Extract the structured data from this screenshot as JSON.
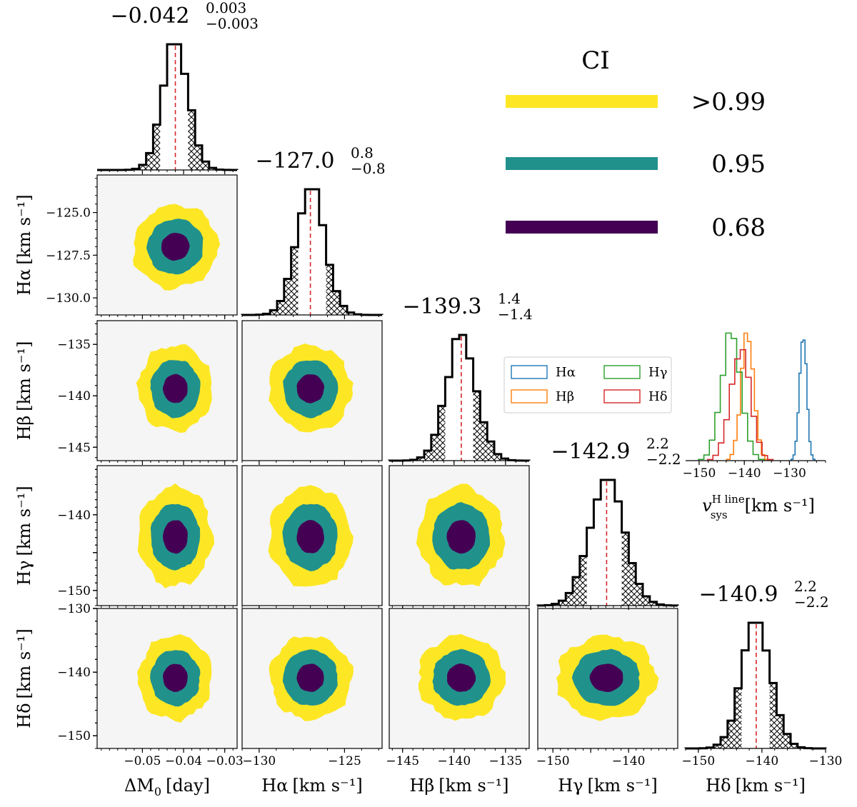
{
  "chart_data": {
    "type": "corner",
    "parameters": [
      {
        "key": "dM0",
        "label": "ΔM",
        "label_sub": "0",
        "label_unit": "[day]",
        "range": [
          -0.061,
          -0.027
        ],
        "ticks": [
          -0.05,
          -0.04,
          -0.03
        ],
        "tick_labels": [
          "−0.05",
          "−0.04",
          "−0.03"
        ],
        "median": -0.042,
        "err_plus": 0.003,
        "err_minus": 0.003,
        "title_value": "−0.042",
        "title_plus": "0.003",
        "title_minus": "−0.003"
      },
      {
        "key": "Ha",
        "label": "Hα",
        "label_unit": "[km s⁻¹]",
        "range": [
          -131,
          -122.8
        ],
        "ticks": [
          -130,
          -125
        ],
        "tick_labels": [
          "−130",
          "−125"
        ],
        "median": -127.0,
        "err_plus": 0.8,
        "err_minus": 0.8,
        "title_value": "−127.0",
        "title_plus": "0.8",
        "title_minus": "−0.8"
      },
      {
        "key": "Hb",
        "label": "Hβ",
        "label_unit": "[km s⁻¹]",
        "range": [
          -146.3,
          -132.7
        ],
        "ticks": [
          -145,
          -140,
          -135
        ],
        "tick_labels": [
          "−145",
          "−140",
          "−135"
        ],
        "median": -139.3,
        "err_plus": 1.4,
        "err_minus": 1.4,
        "title_value": "−139.3",
        "title_plus": "1.4",
        "title_minus": "−1.4"
      },
      {
        "key": "Hg",
        "label": "Hγ",
        "label_unit": "[km s⁻¹]",
        "range": [
          -152,
          -133.5
        ],
        "ticks": [
          -150,
          -145,
          -140
        ],
        "tick_labels": [
          "−150",
          "",
          "−140"
        ],
        "median": -142.9,
        "err_plus": 2.2,
        "err_minus": 2.2,
        "title_value": "−142.9",
        "title_plus": "2.2",
        "title_minus": "−2.2"
      },
      {
        "key": "Hd",
        "label": "Hδ",
        "label_unit": "[km s⁻¹]",
        "range": [
          -152,
          -130
        ],
        "ticks": [
          -150,
          -140,
          -130
        ],
        "tick_labels": [
          "−150",
          "−140",
          "−130"
        ],
        "median": -140.9,
        "err_plus": 2.2,
        "err_minus": 2.2,
        "title_value": "−140.9",
        "title_plus": "2.2",
        "title_minus": "−2.2"
      }
    ],
    "y_tick_labels": {
      "Ha": {
        "ticks": [
          -125,
          -127.5,
          -130
        ],
        "labels": [
          "−125.0",
          "−127.5",
          "−130.0"
        ]
      },
      "Hb": {
        "ticks": [
          -135,
          -140,
          -145
        ],
        "labels": [
          "−135",
          "−140",
          "−145"
        ]
      },
      "Hg": {
        "ticks": [
          -140,
          -145,
          -150
        ],
        "labels": [
          "−140",
          "",
          "−150"
        ]
      },
      "Hd": {
        "ticks": [
          -130,
          -140,
          -150
        ],
        "labels": [
          "−130",
          "−140",
          "−150"
        ]
      }
    },
    "credible_intervals": [
      {
        "level": ">0.99",
        "color": "#fde725"
      },
      {
        "level": "0.95",
        "color": "#21918c"
      },
      {
        "level": "0.68",
        "color": "#440154"
      }
    ],
    "ci_title": "CI",
    "inset": {
      "type": "histogram",
      "xlabel": "v",
      "xlabel_sup": "H line",
      "xlabel_sub": "sys",
      "xlabel_unit": "[km s⁻¹]",
      "xrange": [
        -153,
        -122
      ],
      "ticks": [
        -150,
        -140,
        -130
      ],
      "tick_labels": [
        "−150",
        "−140",
        "−130"
      ],
      "series": [
        {
          "name": "Hα",
          "color": "#1f77b4",
          "median": -127.0,
          "sigma": 0.8
        },
        {
          "name": "Hβ",
          "color": "#ff7f0e",
          "median": -139.3,
          "sigma": 1.4
        },
        {
          "name": "Hγ",
          "color": "#2ca02c",
          "median": -142.9,
          "sigma": 2.2
        },
        {
          "name": "Hδ",
          "color": "#d62728",
          "median": -140.9,
          "sigma": 2.2
        }
      ]
    },
    "colors": {
      "median_line": "#d62728",
      "panel_bg": "#f5f5f5",
      "hist_line": "#000000"
    }
  }
}
